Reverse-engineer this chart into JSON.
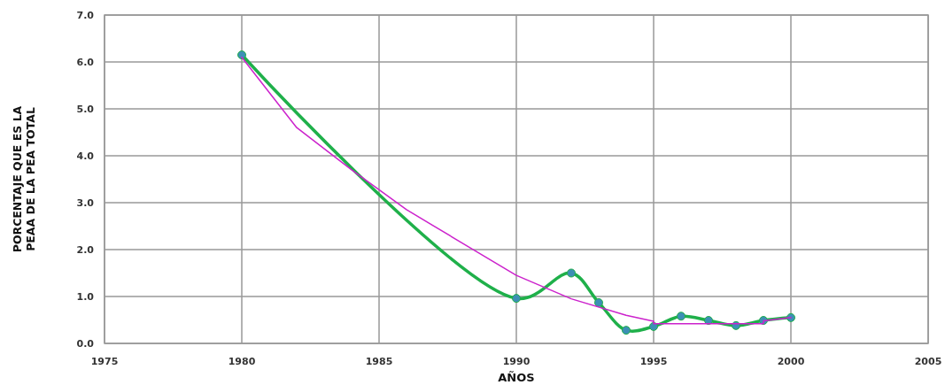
{
  "chart_data": {
    "type": "line",
    "xlabel": "AÑOS",
    "ylabel": "PORCENTAJE QUE ES LA PEAA DE LA PEA TOTAL",
    "xlim": [
      1975,
      2005
    ],
    "xticks": [
      1975,
      1980,
      1985,
      1990,
      1995,
      2000,
      2005
    ],
    "ylim": [
      0,
      7
    ],
    "yticks": [
      {
        "value": 0,
        "label": "0.0"
      },
      {
        "value": 1,
        "label": "1.0"
      },
      {
        "value": 2,
        "label": "2.0"
      },
      {
        "value": 3,
        "label": "3.0"
      },
      {
        "value": 4,
        "label": "4.0"
      },
      {
        "value": 5,
        "label": "5.0"
      },
      {
        "value": 6,
        "label": "6.0"
      },
      {
        "value": 7,
        "label": "7.0"
      }
    ],
    "grid": true,
    "series": [
      {
        "color": "#cc22cc",
        "marker": "none",
        "x": [
          1980,
          1982,
          1984,
          1986,
          1988,
          1990,
          1992,
          1994,
          1995,
          1995,
          1999,
          1999,
          2000
        ],
        "values": [
          6.1,
          4.6,
          3.7,
          2.85,
          2.15,
          1.45,
          0.95,
          0.6,
          0.47,
          0.42,
          0.42,
          0.48,
          0.55
        ]
      },
      {
        "color": "#1fb04a",
        "marker": "circle",
        "x": [
          1980,
          1990,
          1992,
          1993,
          1994,
          1995,
          1996,
          1997,
          1998,
          1999,
          2000
        ],
        "values": [
          6.15,
          0.96,
          1.5,
          0.87,
          0.28,
          0.36,
          0.58,
          0.49,
          0.38,
          0.49,
          0.55
        ]
      }
    ]
  }
}
